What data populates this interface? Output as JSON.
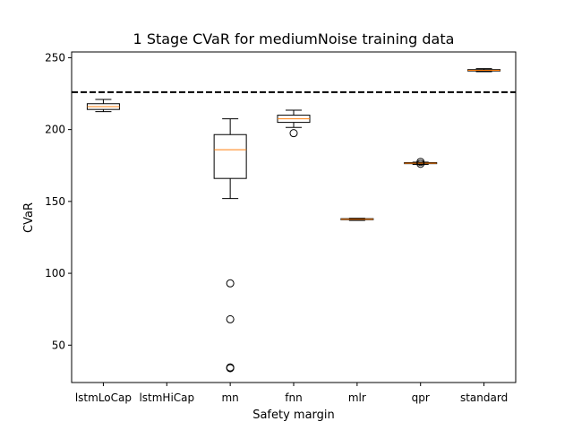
{
  "chart_data": {
    "type": "box",
    "title": "1 Stage CVaR for mediumNoise training data",
    "xlabel": "Safety margin",
    "ylabel": "CVaR",
    "ylim": [
      24,
      254
    ],
    "yticks": [
      50,
      100,
      150,
      200,
      250
    ],
    "categories": [
      "lstmLoCap",
      "lstmHiCap",
      "mn",
      "fnn",
      "mlr",
      "qpr",
      "standard"
    ],
    "reference_line": {
      "y": 226,
      "style": "dashed",
      "color": "#000000"
    },
    "boxes": [
      {
        "category": "lstmLoCap",
        "whisker_low": 212.5,
        "q1": 214,
        "median": 216,
        "q3": 218,
        "whisker_high": 221,
        "outliers": []
      },
      {
        "category": "lstmHiCap",
        "whisker_low": null,
        "q1": null,
        "median": null,
        "q3": null,
        "whisker_high": null,
        "outliers": []
      },
      {
        "category": "mn",
        "whisker_low": 152,
        "q1": 166,
        "median": 186,
        "q3": 196.5,
        "whisker_high": 207.5,
        "outliers": [
          93,
          68,
          34.5,
          34
        ]
      },
      {
        "category": "fnn",
        "whisker_low": 201.5,
        "q1": 205,
        "median": 207.5,
        "q3": 210,
        "whisker_high": 213.5,
        "outliers": [
          197.5
        ]
      },
      {
        "category": "mlr",
        "whisker_low": 136.8,
        "q1": 137.3,
        "median": 137.6,
        "q3": 138,
        "whisker_high": 138.3,
        "outliers": []
      },
      {
        "category": "qpr",
        "whisker_low": 175.8,
        "q1": 176.3,
        "median": 176.6,
        "q3": 177,
        "whisker_high": 177.3,
        "outliers": [
          177.5,
          176.2
        ]
      },
      {
        "category": "standard",
        "whisker_low": 240.3,
        "q1": 240.8,
        "median": 241.2,
        "q3": 241.7,
        "whisker_high": 242.4,
        "outliers": []
      }
    ],
    "colors": {
      "median": "#ff7f0e",
      "box": "#000000",
      "reference": "#000000"
    },
    "grid": false,
    "legend": "none"
  }
}
